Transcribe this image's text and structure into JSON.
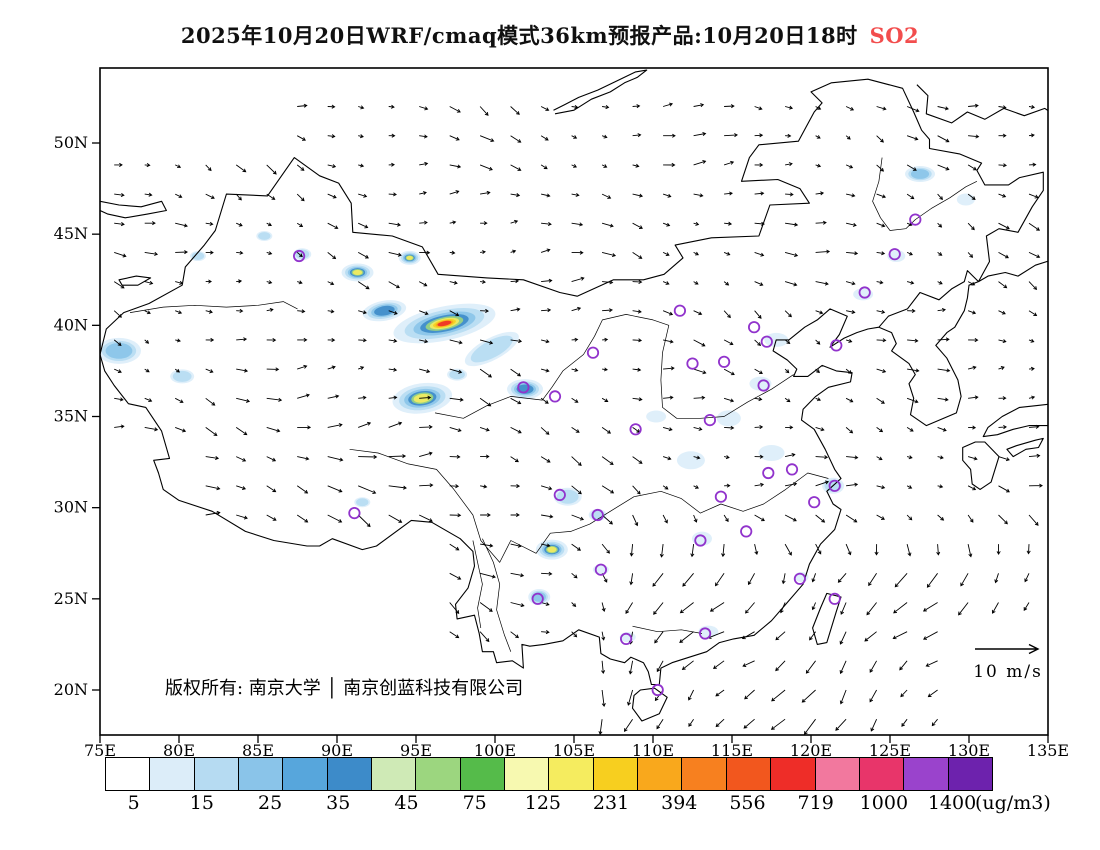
{
  "title": {
    "prefix": "2025年10月20日WRF/cmaq模式36km预报产品:10月20日18时",
    "species": "SO2",
    "species_color": "#f24d4d"
  },
  "axes": {
    "lat_ticks": [
      "20N",
      "25N",
      "30N",
      "35N",
      "40N",
      "45N",
      "50N"
    ],
    "lat_values": [
      20,
      25,
      30,
      35,
      40,
      45,
      50
    ],
    "lon_ticks": [
      "75E",
      "80E",
      "85E",
      "90E",
      "95E",
      "100E",
      "105E",
      "110E",
      "115E",
      "120E",
      "125E",
      "130E",
      "135E"
    ],
    "lon_values": [
      75,
      80,
      85,
      90,
      95,
      100,
      105,
      110,
      115,
      120,
      125,
      130,
      135
    ]
  },
  "annotations": {
    "copyright": "版权所有: 南京大学 │ 南京创蓝科技有限公司",
    "wind_legend": "10 m/s"
  },
  "colorbar": {
    "labels": [
      "5",
      "15",
      "25",
      "35",
      "45",
      "75",
      "125",
      "231",
      "394",
      "556",
      "719",
      "1000",
      "1400"
    ],
    "unit": "(ug/m3)",
    "colors": [
      "#ffffff",
      "#dcedf9",
      "#b6dbf2",
      "#8ac4e9",
      "#57a6dc",
      "#3d8bc9",
      "#cfeab6",
      "#9cd67f",
      "#55bb4a",
      "#f7f9b0",
      "#f5ec5f",
      "#f7cf1f",
      "#f9a81c",
      "#f7801f",
      "#f2571e",
      "#ee2d28",
      "#f2789e",
      "#e8356a",
      "#9a43cc",
      "#6d22ad"
    ]
  },
  "chart_data": {
    "type": "heatmap",
    "title": "2025年10月20日WRF/cmaq模式36km预报产品:10月20日18时 SO2",
    "variable": "SO2",
    "model": "WRF/cmaq",
    "resolution": "36km",
    "run_date": "2025年10月20日",
    "valid_time": "10月20日18时",
    "unit": "ug/m3",
    "level_bounds": [
      5,
      15,
      25,
      35,
      45,
      75,
      125,
      231,
      394,
      556,
      719,
      1000,
      1400
    ],
    "lon_range": [
      75,
      135
    ],
    "lat_range": [
      17.5,
      54.2
    ],
    "wind_legend_speed_mps": 10,
    "hotspots": [
      [
        96.8,
        40.1,
        52,
        17,
        -12,
        9
      ],
      [
        93.0,
        40.8,
        22,
        10,
        -10,
        4
      ],
      [
        95.4,
        36.0,
        30,
        15,
        -8,
        6
      ],
      [
        91.3,
        42.9,
        16,
        9,
        0,
        6
      ],
      [
        94.6,
        43.7,
        11,
        7,
        0,
        6
      ],
      [
        103.6,
        27.7,
        16,
        10,
        0,
        6
      ],
      [
        76.2,
        38.6,
        22,
        13,
        0,
        3
      ],
      [
        80.2,
        37.2,
        12,
        7,
        0,
        2
      ],
      [
        101.9,
        36.5,
        18,
        10,
        0,
        4
      ],
      [
        99.8,
        38.7,
        30,
        11,
        -28,
        2
      ],
      [
        102.8,
        25.1,
        11,
        8,
        0,
        3
      ],
      [
        104.6,
        30.6,
        14,
        9,
        0,
        2
      ],
      [
        126.9,
        48.3,
        15,
        8,
        0,
        3
      ],
      [
        121.4,
        31.2,
        11,
        8,
        0,
        2
      ],
      [
        91.6,
        30.3,
        8,
        5,
        0,
        2
      ],
      [
        87.8,
        43.9,
        9,
        6,
        0,
        2
      ],
      [
        85.4,
        44.9,
        8,
        5,
        0,
        2
      ],
      [
        81.2,
        43.8,
        8,
        5,
        0,
        2
      ],
      [
        97.6,
        37.3,
        10,
        6,
        0,
        2
      ],
      [
        106.5,
        29.6,
        9,
        6,
        0,
        2
      ],
      [
        112.4,
        32.6,
        14,
        9,
        0,
        1
      ],
      [
        114.8,
        34.9,
        12,
        8,
        0,
        1
      ],
      [
        117.5,
        33.0,
        13,
        8,
        0,
        1
      ],
      [
        113.1,
        28.3,
        10,
        7,
        0,
        1
      ],
      [
        117.8,
        39.2,
        12,
        7,
        0,
        1
      ],
      [
        123.3,
        41.7,
        10,
        6,
        0,
        1
      ],
      [
        129.8,
        46.9,
        9,
        6,
        0,
        1
      ],
      [
        113.5,
        23.2,
        10,
        6,
        0,
        1
      ],
      [
        108.4,
        22.9,
        8,
        5,
        0,
        1
      ],
      [
        106.7,
        26.6,
        8,
        5,
        0,
        1
      ],
      [
        119.4,
        26.2,
        7,
        5,
        0,
        1
      ],
      [
        116.8,
        36.8,
        11,
        7,
        0,
        1
      ],
      [
        125.4,
        43.8,
        9,
        6,
        0,
        1
      ],
      [
        110.2,
        35.0,
        10,
        6,
        0,
        1
      ]
    ],
    "city_markers": [
      [
        87.6,
        43.8
      ],
      [
        126.6,
        45.8
      ],
      [
        125.3,
        43.9
      ],
      [
        123.4,
        41.8
      ],
      [
        121.6,
        38.9
      ],
      [
        116.4,
        39.9
      ],
      [
        117.2,
        39.1
      ],
      [
        114.5,
        38.0
      ],
      [
        112.5,
        37.9
      ],
      [
        111.7,
        40.8
      ],
      [
        106.2,
        38.5
      ],
      [
        103.8,
        36.1
      ],
      [
        101.8,
        36.6
      ],
      [
        108.9,
        34.3
      ],
      [
        113.6,
        34.8
      ],
      [
        117.0,
        36.7
      ],
      [
        118.8,
        32.1
      ],
      [
        117.3,
        31.9
      ],
      [
        121.5,
        31.2
      ],
      [
        120.2,
        30.3
      ],
      [
        114.3,
        30.6
      ],
      [
        104.1,
        30.7
      ],
      [
        106.5,
        29.6
      ],
      [
        113.0,
        28.2
      ],
      [
        115.9,
        28.7
      ],
      [
        119.3,
        26.1
      ],
      [
        106.7,
        26.6
      ],
      [
        102.7,
        25.0
      ],
      [
        108.3,
        22.8
      ],
      [
        113.3,
        23.1
      ],
      [
        110.3,
        20.0
      ],
      [
        91.1,
        29.7
      ],
      [
        121.5,
        25.0
      ]
    ]
  }
}
